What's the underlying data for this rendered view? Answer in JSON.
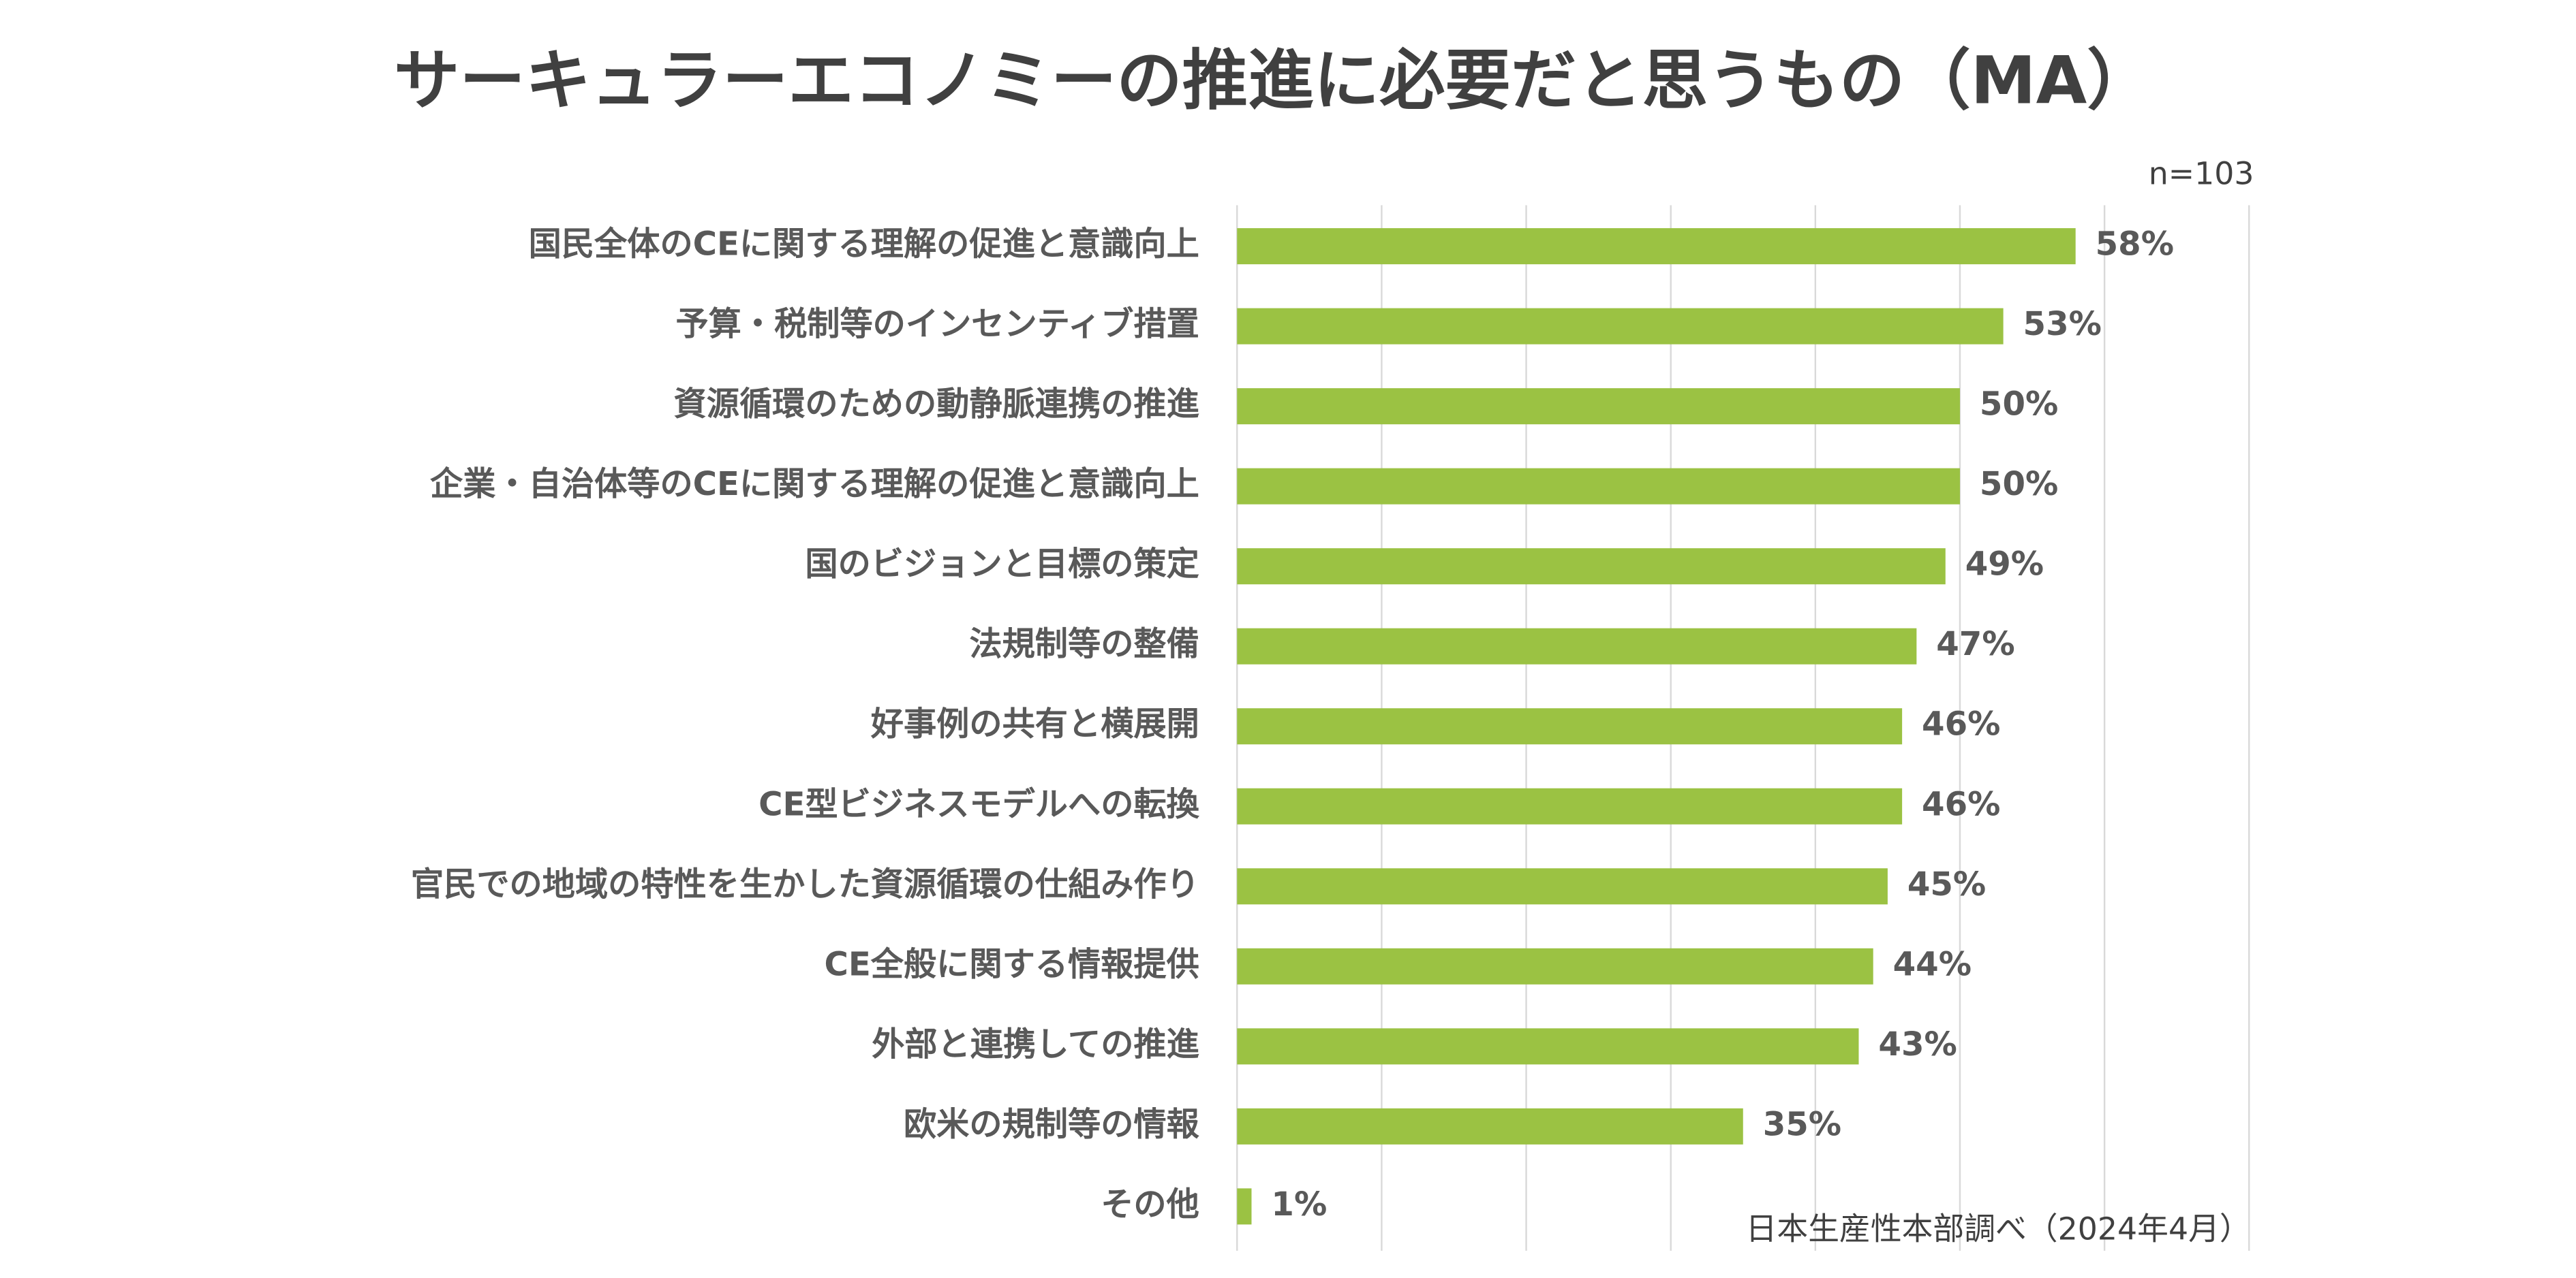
{
  "chart_data": {
    "type": "hbar",
    "title": "サーキュラーエコノミーの推進に必要だと思うもの（MA）",
    "annotations": [
      "n=103",
      "日本生産性本部調べ（2024年4月）"
    ],
    "categories": [
      "国民全体のCEに関する理解の促進と意識向上",
      "予算・税制等のインセンティブ措置",
      "資源循環のための動静脈連携の推進",
      "企業・自治体等のCEに関する理解の促進と意識向上",
      "国のビジョンと目標の策定",
      "法規制等の整備",
      "好事例の共有と横展開",
      "CE型ビジネスモデルへの転換",
      "官民での地域の特性を生かした資源循環の仕組み作り",
      "CE全般に関する情報提供",
      "外部と連携しての推進",
      "欧米の規制等の情報",
      "その他"
    ],
    "values": [
      58,
      53,
      50,
      50,
      49,
      47,
      46,
      46,
      45,
      44,
      43,
      35,
      1
    ],
    "value_labels": [
      "58%",
      "53%",
      "50%",
      "50%",
      "49%",
      "47%",
      "46%",
      "46%",
      "45%",
      "44%",
      "43%",
      "35%",
      "1%"
    ],
    "color": "#9bc243",
    "xlim": [
      0,
      70
    ],
    "xticks": [
      0,
      10,
      20,
      30,
      40,
      50,
      60,
      70
    ],
    "grid": true
  }
}
